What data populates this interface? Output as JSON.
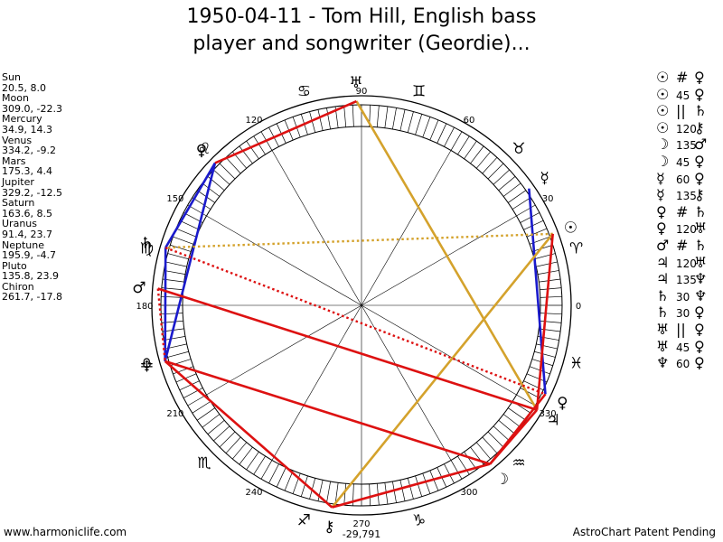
{
  "title_line1": "1950-04-11 - Tom Hill, English bass",
  "title_line2": "player and songwriter (Geordie)...",
  "planets": [
    {
      "name": "Sun",
      "value": "20.5, 8.0",
      "glyph": "☉",
      "lon": 20.5
    },
    {
      "name": "Moon",
      "value": "309.0, -22.3",
      "glyph": "☽",
      "lon": 309.0
    },
    {
      "name": "Mercury",
      "value": "34.9, 14.3",
      "glyph": "☿",
      "lon": 34.9
    },
    {
      "name": "Venus",
      "value": "334.2, -9.2",
      "glyph": "♀",
      "lon": 334.2
    },
    {
      "name": "Mars",
      "value": "175.3, 4.4",
      "glyph": "♂",
      "lon": 175.3
    },
    {
      "name": "Jupiter",
      "value": "329.2, -12.5",
      "glyph": "♃",
      "lon": 329.2
    },
    {
      "name": "Saturn",
      "value": "163.6, 8.5",
      "glyph": "♄",
      "lon": 163.6
    },
    {
      "name": "Uranus",
      "value": "91.4, 23.7",
      "glyph": "♅",
      "lon": 91.4
    },
    {
      "name": "Neptune",
      "value": "195.9, -4.7",
      "glyph": "♆",
      "lon": 195.9
    },
    {
      "name": "Pluto",
      "value": "135.8, 23.9",
      "glyph": "♀",
      "lon": 135.8
    },
    {
      "name": "Chiron",
      "value": "261.7, -17.8",
      "glyph": "⚷",
      "lon": 261.7
    }
  ],
  "aspects": [
    {
      "g1": "☉",
      "sym": "#",
      "g2": "♀"
    },
    {
      "g1": "☉",
      "sym": "45",
      "g2": "♀"
    },
    {
      "g1": "☉",
      "sym": "||",
      "g2": "♄"
    },
    {
      "g1": "☉",
      "sym": "120",
      "g2": "⚷"
    },
    {
      "g1": "☽",
      "sym": "135",
      "g2": "♂"
    },
    {
      "g1": "☽",
      "sym": "45",
      "g2": "♀"
    },
    {
      "g1": "☿",
      "sym": "60",
      "g2": "♀"
    },
    {
      "g1": "☿",
      "sym": "135",
      "g2": "⚷"
    },
    {
      "g1": "♀",
      "sym": "#",
      "g2": "♄"
    },
    {
      "g1": "♀",
      "sym": "120",
      "g2": "♅"
    },
    {
      "g1": "♂",
      "sym": "#",
      "g2": "♄"
    },
    {
      "g1": "♃",
      "sym": "120",
      "g2": "♅"
    },
    {
      "g1": "♃",
      "sym": "135",
      "g2": "♆"
    },
    {
      "g1": "♄",
      "sym": "30",
      "g2": "♆"
    },
    {
      "g1": "♄",
      "sym": "30",
      "g2": "♀"
    },
    {
      "g1": "♅",
      "sym": "||",
      "g2": "♀"
    },
    {
      "g1": "♅",
      "sym": "45",
      "g2": "♀"
    },
    {
      "g1": "♆",
      "sym": "60",
      "g2": "♀"
    }
  ],
  "degree_labels": [
    "0",
    "30",
    "60",
    "90",
    "120",
    "150",
    "180",
    "210",
    "240",
    "270",
    "300",
    "330"
  ],
  "bottom_label_270": "270",
  "bottom_label_coords": "-29,791",
  "signs": [
    {
      "glyph": "♈",
      "lon": 15
    },
    {
      "glyph": "♉",
      "lon": 45
    },
    {
      "glyph": "♊",
      "lon": 75
    },
    {
      "glyph": "♋",
      "lon": 105
    },
    {
      "glyph": "♌",
      "lon": 135
    },
    {
      "glyph": "♍",
      "lon": 165
    },
    {
      "glyph": "♎",
      "lon": 195
    },
    {
      "glyph": "♏",
      "lon": 225
    },
    {
      "glyph": "♐",
      "lon": 255
    },
    {
      "glyph": "♑",
      "lon": 285
    },
    {
      "glyph": "♒",
      "lon": 315
    },
    {
      "glyph": "♓",
      "lon": 345
    }
  ],
  "aspect_lines": [
    {
      "from": "Mercury",
      "to": "Venus",
      "color": "#1a1acc",
      "style": "solid"
    },
    {
      "from": "Pluto",
      "to": "Saturn",
      "color": "#1a1acc",
      "style": "solid"
    },
    {
      "from": "Pluto",
      "to": "Neptune",
      "color": "#1a1acc",
      "style": "solid"
    },
    {
      "from": "Saturn",
      "to": "Neptune",
      "color": "#1a1acc",
      "style": "solid"
    },
    {
      "from": "Uranus",
      "to": "Jupiter",
      "color": "#d4a22c",
      "style": "solid"
    },
    {
      "from": "Chiron",
      "to": "Sun",
      "color": "#d4a22c",
      "style": "solid"
    },
    {
      "from": "Sun",
      "to": "Saturn",
      "color": "#d4a22c",
      "style": "dotted"
    },
    {
      "from": "Uranus",
      "to": "Pluto",
      "color": "#dd1111",
      "style": "solid"
    },
    {
      "from": "Neptune",
      "to": "Moon",
      "color": "#dd1111",
      "style": "solid"
    },
    {
      "from": "Moon",
      "to": "Chiron",
      "color": "#dd1111",
      "style": "solid"
    },
    {
      "from": "Chiron",
      "to": "Neptune",
      "color": "#dd1111",
      "style": "solid"
    },
    {
      "from": "Mars",
      "to": "Jupiter",
      "color": "#dd1111",
      "style": "solid"
    },
    {
      "from": "Moon",
      "to": "Venus",
      "color": "#dd1111",
      "style": "solid"
    },
    {
      "from": "Sun",
      "to": "Jupiter",
      "color": "#dd1111",
      "style": "solid"
    },
    {
      "from": "Saturn",
      "to": "Venus",
      "color": "#dd1111",
      "style": "dotted"
    },
    {
      "from": "Mars",
      "to": "Neptune",
      "color": "#dd1111",
      "style": "dotted"
    },
    {
      "from": "Moon",
      "to": "Jupiter",
      "color": "#dd1111",
      "style": "solid"
    }
  ],
  "footer_left": "www.harmoniclife.com",
  "footer_right": "AstroChart Patent Pending"
}
